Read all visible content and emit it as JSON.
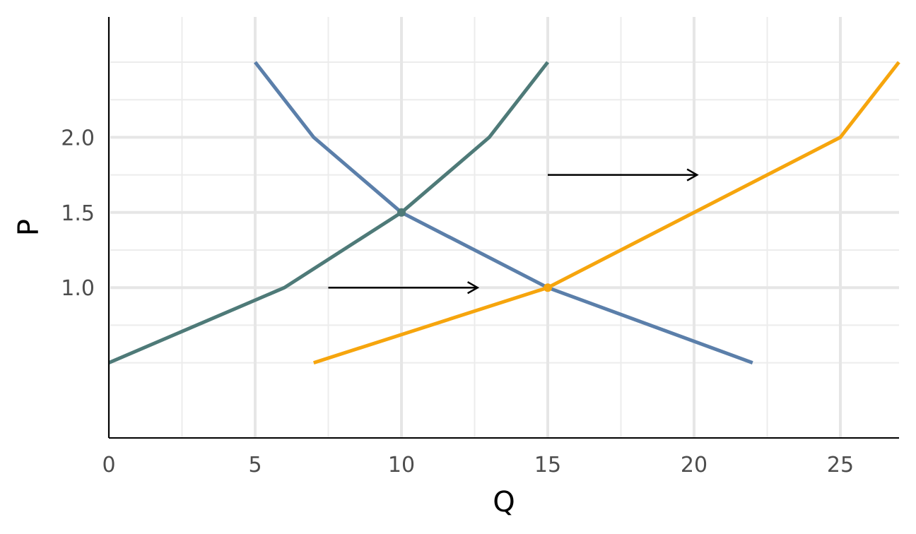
{
  "chart_data": {
    "type": "line",
    "title": "",
    "xlabel": "Q",
    "ylabel": "P",
    "xlim": [
      0,
      27
    ],
    "ylim": [
      0,
      2.75
    ],
    "x_ticks": [
      {
        "value": 0,
        "label": "0"
      },
      {
        "value": 5,
        "label": "5"
      },
      {
        "value": 10,
        "label": "10"
      },
      {
        "value": 15,
        "label": "15"
      },
      {
        "value": 20,
        "label": "20"
      },
      {
        "value": 25,
        "label": "25"
      }
    ],
    "y_ticks": [
      {
        "value": 1.0,
        "label": "1.0"
      },
      {
        "value": 1.5,
        "label": "1.5"
      },
      {
        "value": 2.0,
        "label": "2.0"
      }
    ],
    "x_minor_grid": [
      2.5,
      7.5,
      12.5,
      17.5,
      22.5
    ],
    "y_minor_grid": [
      0.5,
      0.75,
      1.25,
      1.75,
      2.25,
      2.5
    ],
    "grid": true,
    "series": [
      {
        "color": "#5b7faa",
        "points": [
          [
            5,
            2.5
          ],
          [
            7,
            2.0
          ],
          [
            10,
            1.5
          ],
          [
            15,
            1.0
          ],
          [
            22,
            0.5
          ]
        ]
      },
      {
        "color": "#4e7a78",
        "points": [
          [
            0,
            0.5
          ],
          [
            6,
            1.0
          ],
          [
            10,
            1.5
          ],
          [
            13,
            2.0
          ],
          [
            15,
            2.5
          ]
        ]
      },
      {
        "color": "#f6a50d",
        "points": [
          [
            7,
            0.5
          ],
          [
            15,
            1.0
          ],
          [
            25,
            2.0
          ],
          [
            27,
            2.5
          ]
        ]
      }
    ],
    "markers": [
      {
        "x": 10,
        "y": 1.5,
        "color": "#4e7a78"
      },
      {
        "x": 15,
        "y": 1.0,
        "color": "#f6a50d"
      }
    ],
    "arrows": [
      {
        "from": [
          7.5,
          1.0
        ],
        "to": [
          12.6,
          1.0
        ]
      },
      {
        "from": [
          15,
          1.75
        ],
        "to": [
          20.1,
          1.75
        ]
      }
    ]
  }
}
